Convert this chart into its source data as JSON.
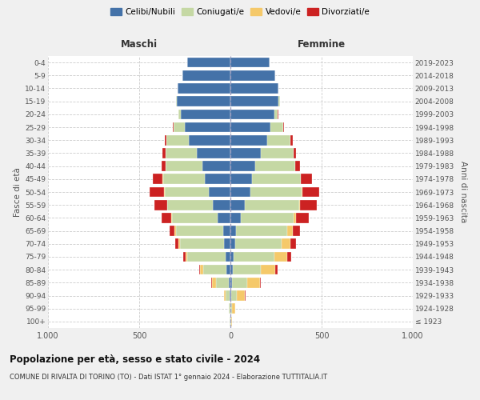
{
  "age_groups": [
    "100+",
    "95-99",
    "90-94",
    "85-89",
    "80-84",
    "75-79",
    "70-74",
    "65-69",
    "60-64",
    "55-59",
    "50-54",
    "45-49",
    "40-44",
    "35-39",
    "30-34",
    "25-29",
    "20-24",
    "15-19",
    "10-14",
    "5-9",
    "0-4"
  ],
  "birth_years": [
    "≤ 1923",
    "1924-1928",
    "1929-1933",
    "1934-1938",
    "1939-1943",
    "1944-1948",
    "1949-1953",
    "1954-1958",
    "1959-1963",
    "1964-1968",
    "1969-1973",
    "1974-1978",
    "1979-1983",
    "1984-1988",
    "1989-1993",
    "1994-1998",
    "1999-2003",
    "2004-2008",
    "2009-2013",
    "2014-2018",
    "2019-2023"
  ],
  "maschi_celibi": [
    2,
    2,
    5,
    10,
    20,
    25,
    35,
    40,
    70,
    95,
    120,
    140,
    155,
    185,
    230,
    250,
    270,
    295,
    290,
    265,
    235
  ],
  "maschi_coniugati": [
    2,
    5,
    20,
    70,
    130,
    210,
    240,
    260,
    250,
    250,
    240,
    230,
    200,
    170,
    120,
    60,
    15,
    5,
    0,
    0,
    0
  ],
  "maschi_vedovi": [
    0,
    3,
    10,
    20,
    15,
    10,
    8,
    5,
    3,
    2,
    2,
    1,
    1,
    1,
    0,
    0,
    0,
    0,
    0,
    0,
    0
  ],
  "maschi_divorziati": [
    0,
    0,
    2,
    5,
    8,
    15,
    20,
    30,
    55,
    70,
    80,
    55,
    20,
    15,
    10,
    5,
    2,
    0,
    0,
    0,
    0
  ],
  "femmine_celibi": [
    2,
    2,
    5,
    8,
    12,
    18,
    25,
    30,
    55,
    80,
    110,
    120,
    135,
    165,
    200,
    220,
    240,
    265,
    265,
    245,
    215
  ],
  "femmine_coniugati": [
    2,
    8,
    30,
    85,
    155,
    225,
    255,
    280,
    290,
    295,
    280,
    265,
    220,
    180,
    130,
    70,
    20,
    5,
    0,
    0,
    0
  ],
  "femmine_vedovi": [
    5,
    18,
    45,
    70,
    80,
    70,
    50,
    30,
    15,
    8,
    5,
    3,
    2,
    1,
    1,
    0,
    0,
    0,
    0,
    0,
    0
  ],
  "femmine_divorziati": [
    0,
    0,
    2,
    5,
    10,
    20,
    30,
    40,
    70,
    90,
    90,
    60,
    25,
    15,
    10,
    5,
    2,
    0,
    0,
    0,
    0
  ],
  "color_celibi": "#4472a8",
  "color_coniugati": "#c5d8a4",
  "color_vedovi": "#f5c96a",
  "color_divorziati": "#cc2222",
  "title": "Popolazione per età, sesso e stato civile - 2024",
  "subtitle": "COMUNE DI RIVALTA DI TORINO (TO) - Dati ISTAT 1° gennaio 2024 - Elaborazione TUTTITALIA.IT",
  "xlabel_left": "Maschi",
  "xlabel_right": "Femmine",
  "ylabel_left": "Fasce di età",
  "ylabel_right": "Anni di nascita",
  "xlim": 1000,
  "bg_color": "#f0f0f0",
  "plot_bg": "#ffffff",
  "grid_color": "#cccccc"
}
